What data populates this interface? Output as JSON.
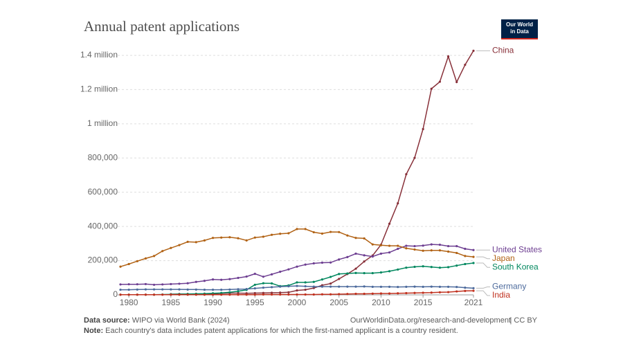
{
  "chart_data": {
    "type": "line",
    "title": "Annual patent applications",
    "logo": [
      "Our World",
      "in Data"
    ],
    "source_label": "Data source:",
    "source": "WIPO via World Bank (2024)",
    "url": "OurWorldinData.org/research-and-development",
    "license": "| CC BY",
    "note_label": "Note:",
    "note": "Each country's data includes patent applications for which the first-named applicant is a country resident.",
    "x": [
      1979,
      1980,
      1981,
      1982,
      1983,
      1984,
      1985,
      1986,
      1987,
      1988,
      1989,
      1990,
      1991,
      1992,
      1993,
      1994,
      1995,
      1996,
      1997,
      1998,
      1999,
      2000,
      2001,
      2002,
      2003,
      2004,
      2005,
      2006,
      2007,
      2008,
      2009,
      2010,
      2011,
      2012,
      2013,
      2014,
      2015,
      2016,
      2017,
      2018,
      2019,
      2020,
      2021
    ],
    "xlim": [
      1979,
      2021
    ],
    "xticks": [
      1980,
      1985,
      1990,
      1995,
      2000,
      2005,
      2010,
      2015,
      2021
    ],
    "ylim": [
      0,
      1400000
    ],
    "yticks": [
      0,
      {
        "value": 200000,
        "label": "200,000"
      },
      {
        "value": 400000,
        "label": "400,000"
      },
      {
        "value": 600000,
        "label": "600,000"
      },
      {
        "value": 800000,
        "label": "800,000"
      },
      {
        "value": 1000000,
        "label": "1 million"
      },
      {
        "value": 1200000,
        "label": "1.2 million"
      },
      {
        "value": 1400000,
        "label": "1.4 million"
      }
    ],
    "grid": true,
    "series": [
      {
        "name": "China",
        "color": "#883039",
        "values": [
          null,
          null,
          null,
          null,
          null,
          null,
          4000,
          5000,
          5000,
          5000,
          5000,
          6000,
          8000,
          10000,
          10000,
          9000,
          10000,
          11000,
          12000,
          13000,
          15000,
          26000,
          30000,
          40000,
          56000,
          66000,
          93000,
          122000,
          153000,
          195000,
          230000,
          293000,
          416000,
          535000,
          705000,
          801000,
          969000,
          1205000,
          1246000,
          1394000,
          1244000,
          1345000,
          1427000
        ]
      },
      {
        "name": "United States",
        "color": "#6d3e91",
        "values": [
          61000,
          62000,
          62000,
          63000,
          59000,
          61000,
          63000,
          65000,
          68000,
          76000,
          82000,
          90000,
          88000,
          92000,
          99000,
          107000,
          123000,
          106000,
          120000,
          135000,
          149000,
          165000,
          177000,
          184000,
          188000,
          189000,
          207000,
          221000,
          241000,
          231000,
          224000,
          241000,
          248000,
          269000,
          287000,
          285000,
          288000,
          295000,
          293000,
          285000,
          285000,
          269000,
          262000
        ]
      },
      {
        "name": "Japan",
        "color": "#b16214",
        "values": [
          165000,
          180000,
          197000,
          213000,
          227000,
          256000,
          274000,
          291000,
          310000,
          308000,
          318000,
          333000,
          335000,
          337000,
          331000,
          318000,
          335000,
          340000,
          351000,
          357000,
          360000,
          385000,
          385000,
          366000,
          358000,
          368000,
          367000,
          347000,
          333000,
          330000,
          295000,
          290000,
          287000,
          287000,
          272000,
          265000,
          258000,
          260000,
          260000,
          253000,
          245000,
          227000,
          222000
        ]
      },
      {
        "name": "South Korea",
        "color": "#00875e",
        "values": [
          1000,
          1000,
          1000,
          1000,
          1000,
          2000,
          3000,
          4000,
          5000,
          6000,
          7000,
          9000,
          11000,
          15000,
          21000,
          29000,
          59000,
          68000,
          67000,
          51000,
          55000,
          73000,
          73000,
          76000,
          90000,
          105000,
          122000,
          125000,
          128000,
          127000,
          127000,
          131000,
          138000,
          148000,
          159000,
          164000,
          167000,
          163000,
          159000,
          162000,
          171000,
          180000,
          186000
        ]
      },
      {
        "name": "Germany",
        "color": "#4c6a9c",
        "values": [
          30000,
          30000,
          31000,
          32000,
          32000,
          32000,
          32000,
          32000,
          31000,
          31000,
          30000,
          30000,
          30000,
          31000,
          33000,
          34000,
          38000,
          42000,
          45000,
          48000,
          50000,
          52000,
          50000,
          48000,
          48000,
          48000,
          48000,
          48000,
          48000,
          49000,
          47000,
          47000,
          47000,
          46000,
          47000,
          48000,
          47000,
          48000,
          47000,
          47000,
          46000,
          42000,
          39000
        ]
      },
      {
        "name": "India",
        "color": "#c0301e",
        "values": [
          1000,
          1000,
          1000,
          1000,
          1000,
          1000,
          1000,
          1000,
          1000,
          1000,
          1000,
          1000,
          1000,
          1000,
          1000,
          1000,
          1000,
          2000,
          2000,
          2000,
          2000,
          2000,
          2000,
          2000,
          3000,
          3000,
          4000,
          5000,
          6000,
          6000,
          7000,
          8000,
          8000,
          9000,
          10000,
          11000,
          12000,
          13000,
          15000,
          16000,
          20000,
          23000,
          24000
        ]
      }
    ]
  }
}
